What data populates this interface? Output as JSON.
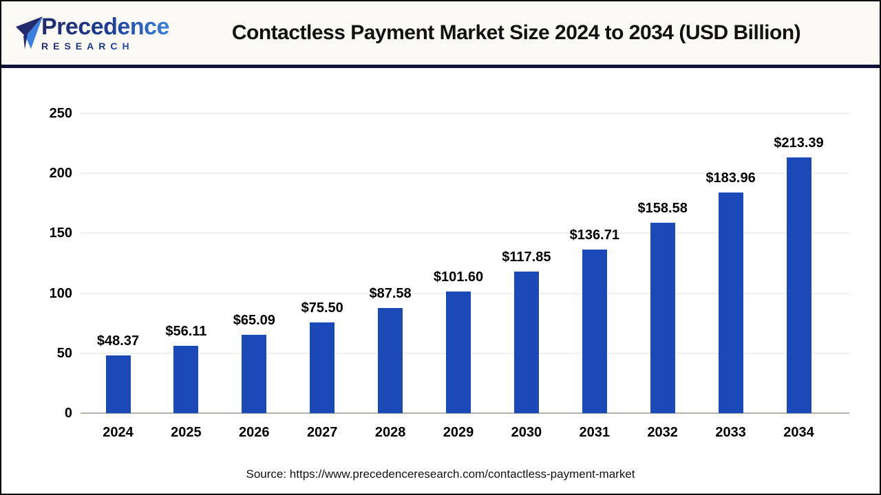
{
  "header": {
    "logo": {
      "brand_line1": "Precedence",
      "brand_line2": "RESEARCH"
    },
    "title": "Contactless Payment Market Size 2024 to 2034 (USD Billion)"
  },
  "footer": {
    "source": "Source: https://www.precedenceresearch.com/contactless-payment-market"
  },
  "colors": {
    "bar": "#1b49b8",
    "divider": "#10103a",
    "header_bg": "#fbf9f4",
    "logo_dark": "#232b6e",
    "logo_light": "#3a7fe0",
    "gridline": "#f0f0f0",
    "axis_line": "#b3b3ae",
    "text": "#000000",
    "frame_border": "#000000"
  },
  "chart_data": {
    "type": "bar",
    "title": "Contactless Payment Market Size 2024 to 2034 (USD Billion)",
    "categories": [
      "2024",
      "2025",
      "2026",
      "2027",
      "2028",
      "2029",
      "2030",
      "2031",
      "2032",
      "2033",
      "2034"
    ],
    "values": [
      48.37,
      56.11,
      65.09,
      75.5,
      87.58,
      101.6,
      117.85,
      136.71,
      158.58,
      183.96,
      213.39
    ],
    "value_prefix": "$",
    "value_decimals": 2,
    "xlabel": "",
    "ylabel": "",
    "ylim": [
      0,
      250
    ],
    "yticks": [
      0,
      50,
      100,
      150,
      200,
      250
    ],
    "grid": true,
    "legend": false,
    "bar_color": "#1b49b8"
  }
}
